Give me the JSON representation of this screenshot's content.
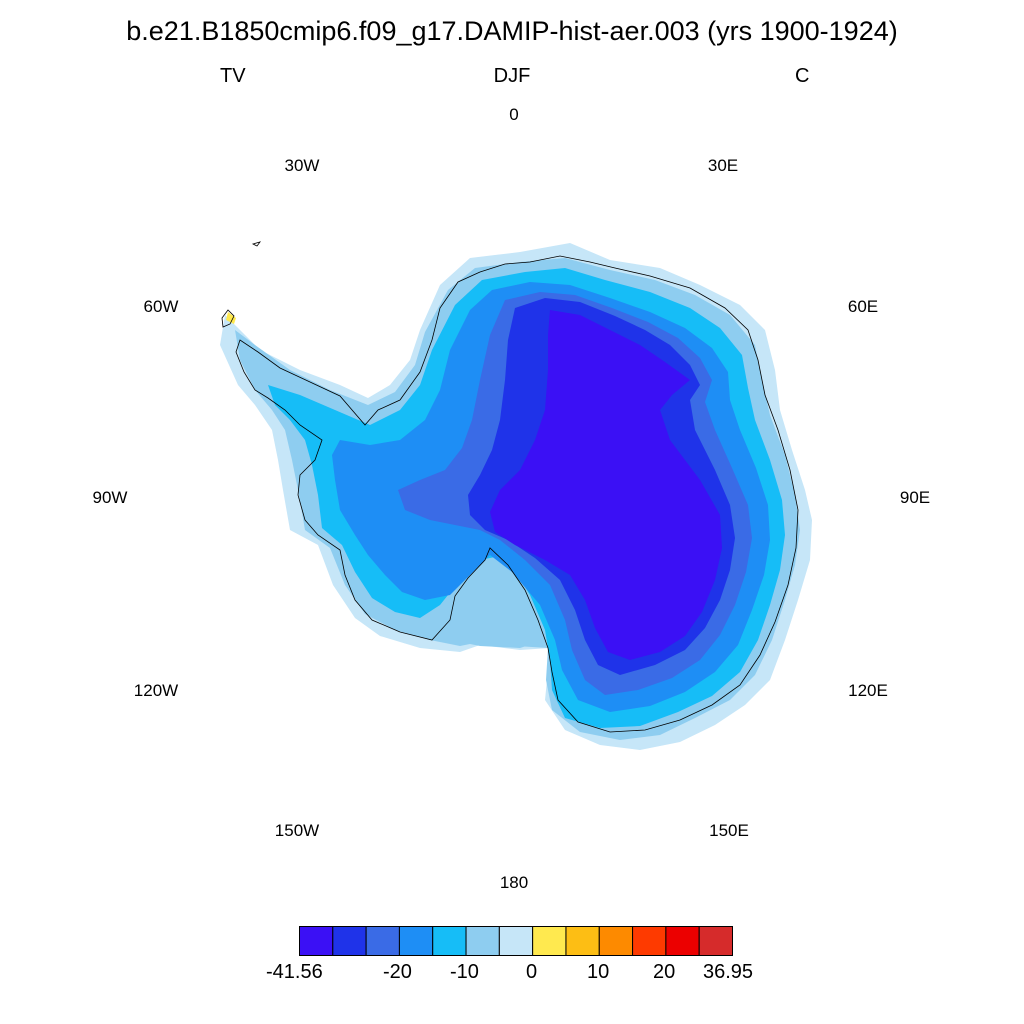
{
  "title": "b.e21.B1850cmip6.f09_g17.DAMIP-hist-aer.003 (yrs 1900-1924)",
  "left_string": "TV",
  "center_string": "DJF",
  "right_string": "C",
  "lon_labels": {
    "n0": "0",
    "n30e": "30E",
    "n60e": "60E",
    "n90e": "90E",
    "n120e": "120E",
    "n150e": "150E",
    "n180": "180",
    "n150w": "150W",
    "n120w": "120W",
    "n90w": "90W",
    "n60w": "60W",
    "n30w": "30W"
  },
  "colorbar": {
    "colors": [
      "#3b10f5",
      "#1f33e9",
      "#3a6be6",
      "#1e8ef5",
      "#16bdf7",
      "#8ecdf0",
      "#c6e6f8",
      "#ffe94f",
      "#fdbe14",
      "#fd8a00",
      "#fe3a00",
      "#ec0000",
      "#d62b2b"
    ],
    "labels": {
      "min": "-41.56",
      "m20": "-20",
      "m10": "-10",
      "zero": "0",
      "p10": "10",
      "p20": "20",
      "max": "36.95"
    }
  }
}
